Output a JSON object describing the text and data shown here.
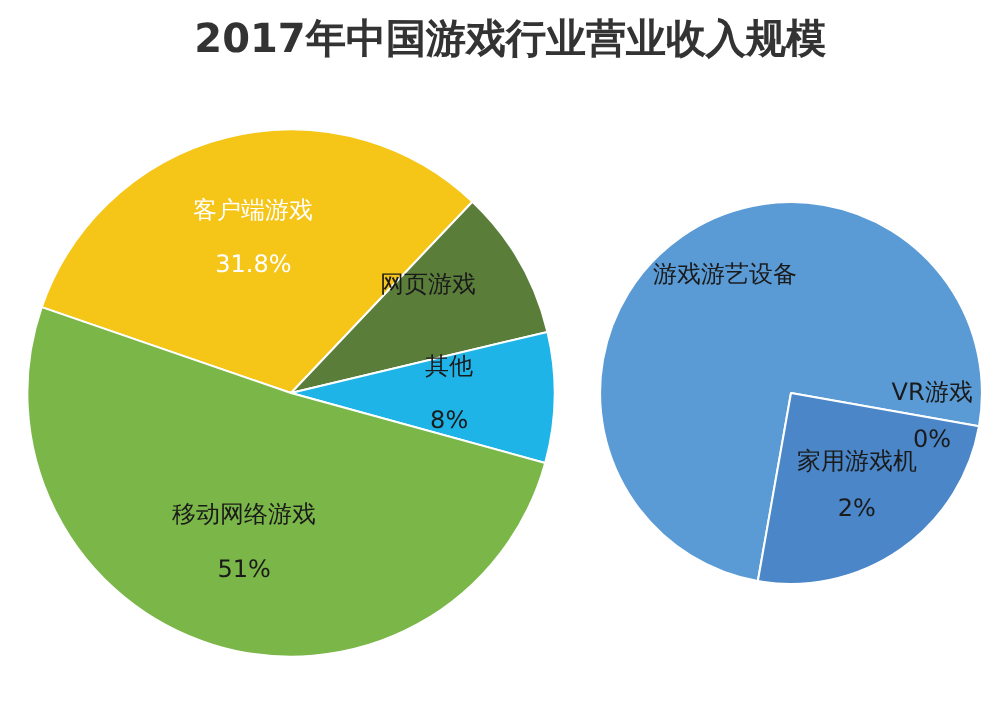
{
  "chart_data": [
    {
      "type": "pie",
      "title": "2017年中国游戏行业营业收入规模",
      "categories": [
        "客户端游戏",
        "网页游戏",
        "其他",
        "移动网络游戏"
      ],
      "values": [
        31.8,
        9.2,
        8,
        51
      ],
      "colors": [
        "#f5c518",
        "#5a7d3a",
        "#1fb4e8",
        "#7ab648"
      ],
      "value_labels": [
        "31.8%",
        null,
        "8%",
        "51%"
      ]
    },
    {
      "type": "pie",
      "categories": [
        "游戏游艺设备",
        "VR游戏",
        "家用游戏机"
      ],
      "values": [
        6,
        0,
        2
      ],
      "colors": [
        "#5a9bd5",
        "#1f4e8c",
        "#4a86c8"
      ],
      "value_labels": [
        null,
        "0%",
        "2%"
      ]
    }
  ]
}
